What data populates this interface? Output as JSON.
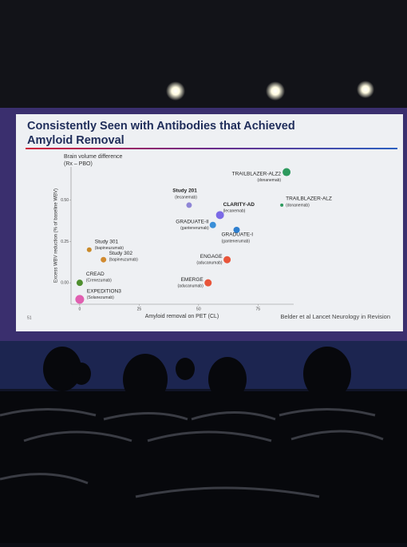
{
  "chart_data": {
    "type": "scatter",
    "title": [
      "Consistently Seen with Antibodies that Achieved",
      "Amyloid Removal"
    ],
    "subtitle": [
      "Brain volume difference",
      "(Rx – PBO)"
    ],
    "x_label": "Amyloid removal on PET (CL)",
    "y_label": "Excess WBV reduction (% of baseline WBV)",
    "source": "Belder et al Lancet Neurology in Revision",
    "slide_number": "51",
    "xlim": [
      -5,
      90
    ],
    "ylim": [
      -0.12,
      0.75
    ],
    "xticks": [
      0,
      25,
      50,
      75
    ],
    "yticks": [
      {
        "value": 0,
        "label": "0.00"
      },
      {
        "value": 0.25,
        "label": "0.25"
      },
      {
        "value": 0.5,
        "label": "0.50"
      }
    ],
    "series": [
      {
        "name": "TRAILBLAZER-ALZ2",
        "sublabel": "(donanemab)",
        "color": "#2e9a5e",
        "x": [
          87
        ],
        "values": [
          0.67
        ]
      },
      {
        "name": "TRAILBLAZER-ALZ",
        "sublabel": "(donanemab)",
        "color": "#2e9a5e",
        "x": [
          85
        ],
        "values": [
          0.47
        ]
      },
      {
        "name": "Study 201",
        "sublabel": "(lecanemab)",
        "color": "#8f86d6",
        "x": [
          46
        ],
        "values": [
          0.47
        ]
      },
      {
        "name": "CLARITY-AD",
        "sublabel": "(lecanemab)",
        "color": "#7b6ae6",
        "x": [
          59
        ],
        "values": [
          0.41
        ]
      },
      {
        "name": "GRADUATE-II",
        "sublabel": "(gantenerumab)",
        "color": "#3a8fd8",
        "x": [
          56
        ],
        "values": [
          0.35
        ]
      },
      {
        "name": "GRADUATE-I",
        "sublabel": "(gantenerumab)",
        "color": "#2e7fcf",
        "x": [
          66
        ],
        "values": [
          0.32
        ]
      },
      {
        "name": "Study 301",
        "sublabel": "(bapineuzumab)",
        "color": "#c98a2a",
        "x": [
          4
        ],
        "values": [
          0.2
        ]
      },
      {
        "name": "Study 302",
        "sublabel": "(bapineuzumab)",
        "color": "#d18a30",
        "x": [
          10
        ],
        "values": [
          0.14
        ]
      },
      {
        "name": "ENGAGE",
        "sublabel": "(aducanumab)",
        "color": "#e8553a",
        "x": [
          62
        ],
        "values": [
          0.14
        ]
      },
      {
        "name": "EMERGE",
        "sublabel": "(aducanumab)",
        "color": "#e8553a",
        "x": [
          54
        ],
        "values": [
          0.0
        ]
      },
      {
        "name": "CREAD",
        "sublabel": "(Crenezumab)",
        "color": "#4f8f2f",
        "x": [
          0
        ],
        "values": [
          0.0
        ]
      },
      {
        "name": "EXPEDITION3",
        "sublabel": "(Solanezumab)",
        "color": "#e05fb0",
        "x": [
          0
        ],
        "values": [
          -0.1
        ]
      }
    ]
  }
}
